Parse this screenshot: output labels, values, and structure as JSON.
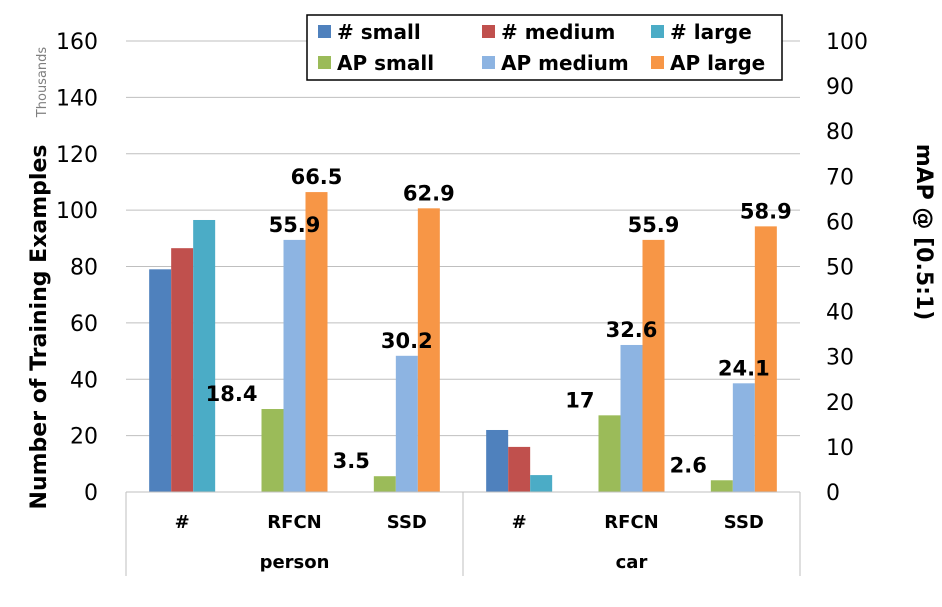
{
  "chart_data": {
    "type": "bar",
    "groups": [
      "person",
      "car"
    ],
    "subcategories": [
      "#",
      "RFCN",
      "SSD"
    ],
    "left_axis": {
      "label": "Number of Training Examples",
      "units": "Thousands",
      "range": [
        0,
        160
      ],
      "ticks": [
        0,
        20,
        40,
        60,
        80,
        100,
        120,
        140,
        160
      ]
    },
    "right_axis": {
      "label": "mAP @ [0.5:1)",
      "range": [
        0,
        100
      ],
      "ticks": [
        0,
        10,
        20,
        30,
        40,
        50,
        60,
        70,
        80,
        90,
        100
      ]
    },
    "count_series": [
      {
        "name": "# small",
        "color": "#4f81bd",
        "values": {
          "person": 79,
          "car": 22
        }
      },
      {
        "name": "# medium",
        "color": "#c0504d",
        "values": {
          "person": 86.5,
          "car": 16
        }
      },
      {
        "name": "# large",
        "color": "#4bacc6",
        "values": {
          "person": 96.5,
          "car": 6
        }
      }
    ],
    "ap_series": [
      {
        "name": "AP small",
        "color": "#9bbb59",
        "values": {
          "person": {
            "RFCN": 18.4,
            "SSD": 3.5
          },
          "car": {
            "RFCN": 17,
            "SSD": 2.6
          }
        }
      },
      {
        "name": "AP medium",
        "color": "#8db4e2",
        "values": {
          "person": {
            "RFCN": 55.9,
            "SSD": 30.2
          },
          "car": {
            "RFCN": 32.6,
            "SSD": 24.1
          }
        }
      },
      {
        "name": "AP large",
        "color": "#f79646",
        "values": {
          "person": {
            "RFCN": 66.5,
            "SSD": 62.9
          },
          "car": {
            "RFCN": 55.9,
            "SSD": 58.9
          }
        }
      }
    ],
    "data_labels": {
      "person": {
        "RFCN": [
          {
            "series": "AP small",
            "text": "18.4"
          },
          {
            "series": "AP medium",
            "text": "55.9"
          },
          {
            "series": "AP large",
            "text": "66.5"
          }
        ],
        "SSD": [
          {
            "series": "AP small",
            "text": "3.5"
          },
          {
            "series": "AP medium",
            "text": "30.2"
          },
          {
            "series": "AP large",
            "text": "62.9"
          }
        ]
      },
      "car": {
        "RFCN": [
          {
            "series": "AP small",
            "text": "17"
          },
          {
            "series": "AP medium",
            "text": "32.6"
          },
          {
            "series": "AP large",
            "text": "55.9"
          }
        ],
        "SSD": [
          {
            "series": "AP small",
            "text": "2.6"
          },
          {
            "series": "AP medium",
            "text": "24.1"
          },
          {
            "series": "AP large",
            "text": "58.9"
          }
        ]
      }
    },
    "legend": {
      "position": "top-right",
      "rows": [
        [
          "# small",
          "# medium",
          "# large"
        ],
        [
          "AP small",
          "AP medium",
          "AP large"
        ]
      ]
    },
    "grid": true
  }
}
